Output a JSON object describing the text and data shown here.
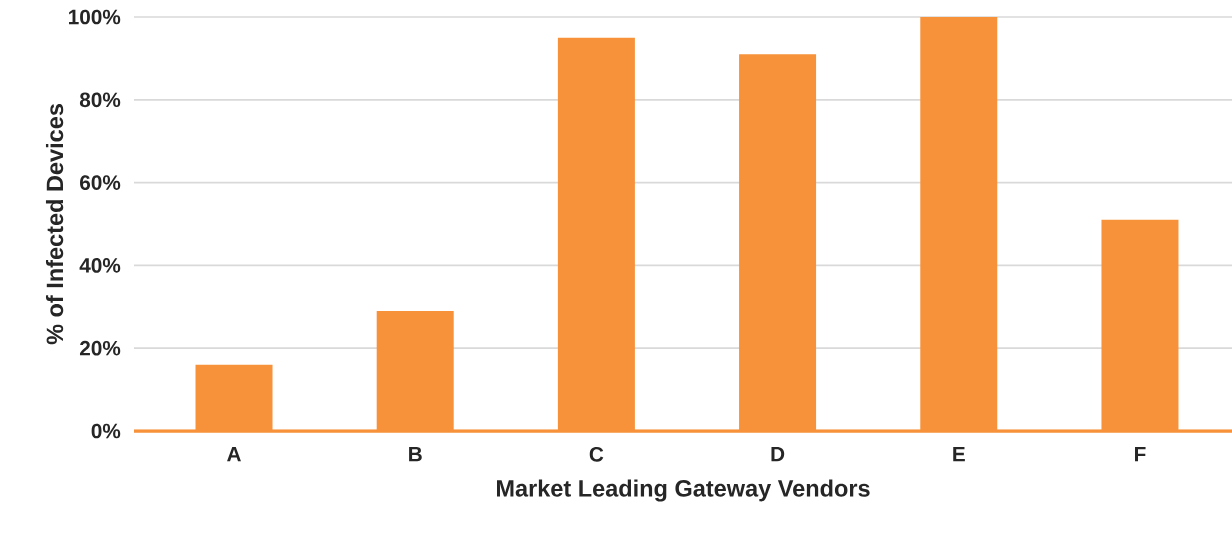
{
  "chart_data": {
    "type": "bar",
    "xlabel": "Market Leading Gateway Vendors",
    "ylabel": "% of Infected Devices",
    "categories": [
      "A",
      "B",
      "C",
      "D",
      "E",
      "F"
    ],
    "values": [
      16,
      29,
      95,
      91,
      100,
      51
    ],
    "color": "#f7923a",
    "ylim": [
      0,
      100
    ],
    "yticks": [
      {
        "value": 0,
        "label": "0%"
      },
      {
        "value": 20,
        "label": "20%"
      },
      {
        "value": 40,
        "label": "40%"
      },
      {
        "value": 60,
        "label": "60%"
      },
      {
        "value": 80,
        "label": "80%"
      },
      {
        "value": 100,
        "label": "100%"
      }
    ],
    "grid": "y"
  }
}
